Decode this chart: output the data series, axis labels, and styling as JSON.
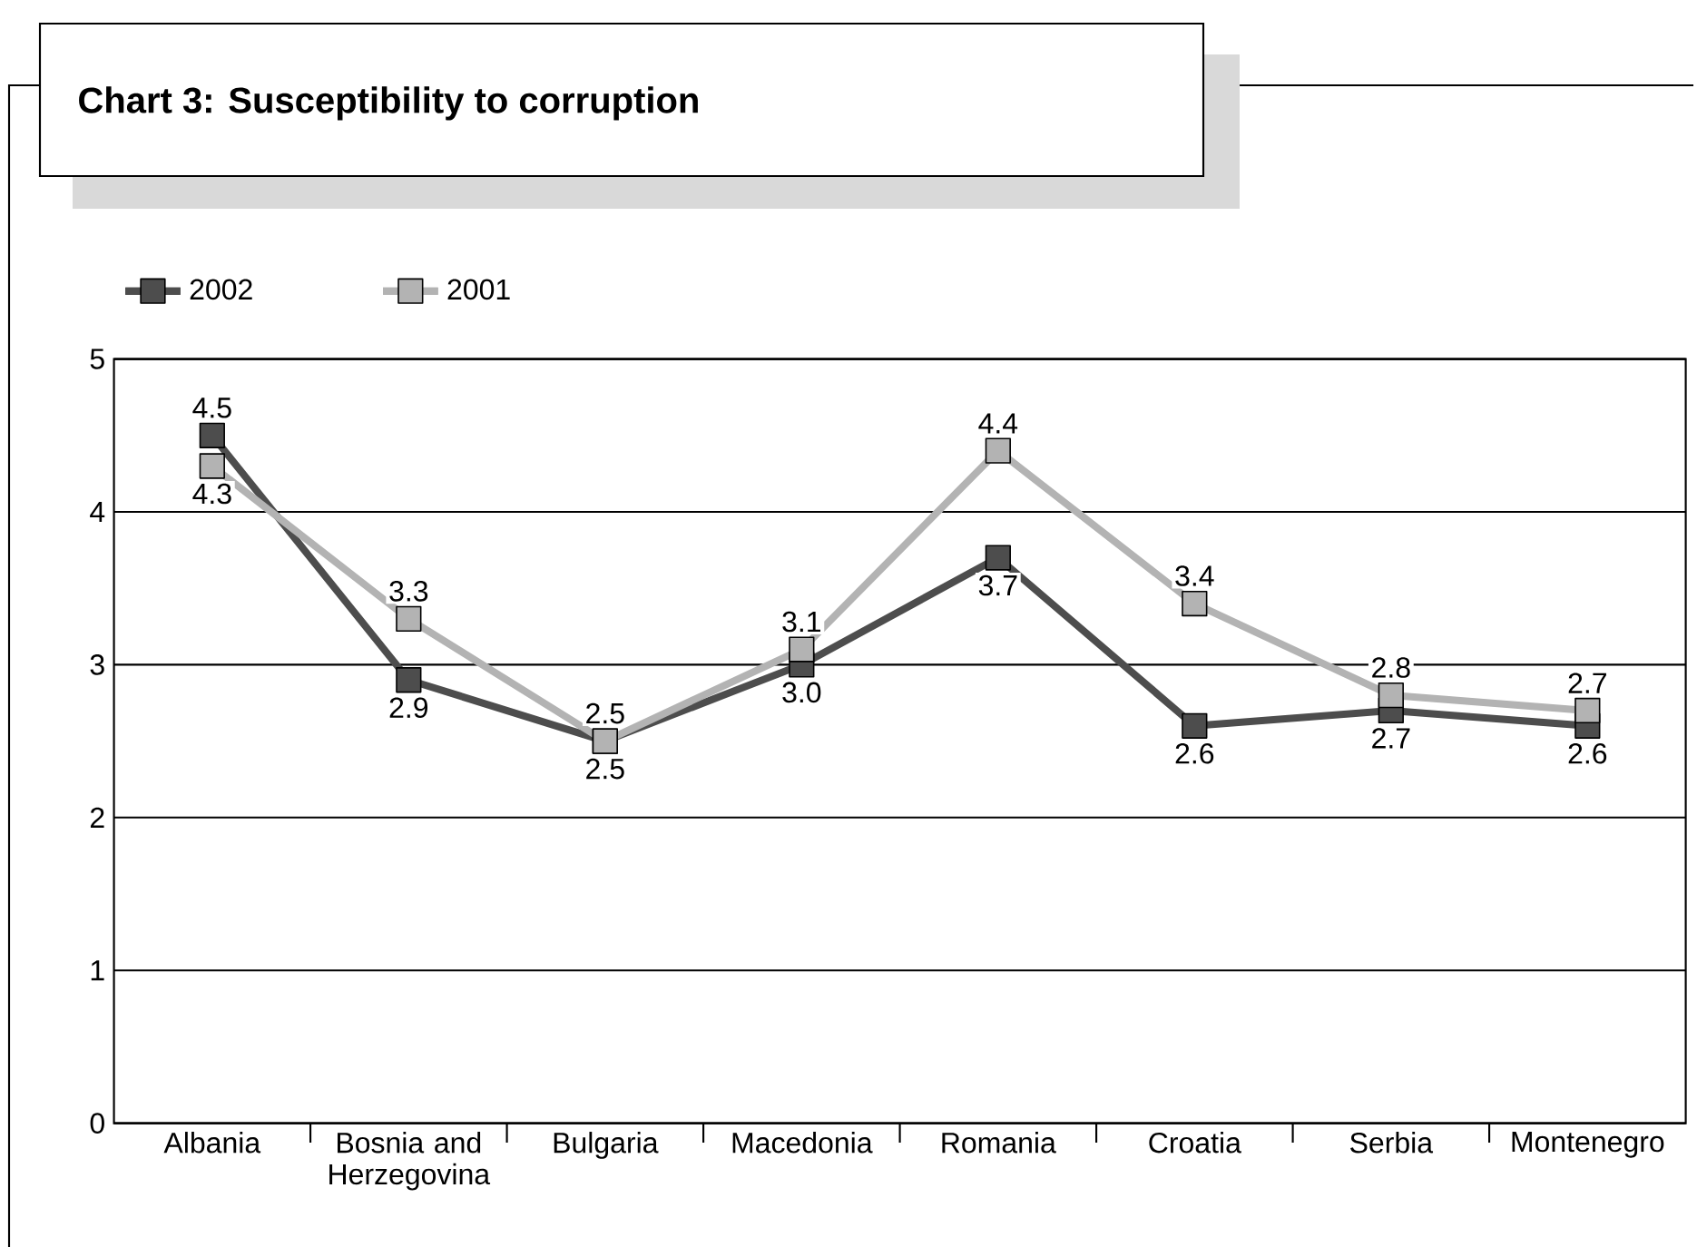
{
  "chart_data": {
    "type": "line",
    "title": "Chart 3: Susceptibility to corruption",
    "categories": [
      "Albania",
      "Bosnia and Herzegovina",
      "Bulgaria",
      "Macedonia",
      "Romania",
      "Croatia",
      "Serbia",
      "Montenegro"
    ],
    "series": [
      {
        "name": "2002",
        "color": "#4d4d4d",
        "values": [
          4.5,
          2.9,
          2.5,
          3.0,
          3.7,
          2.6,
          2.7,
          2.6
        ],
        "value_labels": [
          "4.5",
          "2.9",
          "2.5",
          "3.0",
          "3.7",
          "2.6",
          "2.7",
          "2.6"
        ]
      },
      {
        "name": "2001",
        "color": "#b3b3b3",
        "values": [
          4.3,
          3.3,
          2.5,
          3.1,
          4.4,
          3.4,
          2.8,
          2.7
        ],
        "value_labels": [
          "4.3",
          "3.3",
          "2.5",
          "3.1",
          "4.4",
          "3.4",
          "2.8",
          "2.7"
        ]
      }
    ],
    "ylim": [
      0,
      5
    ],
    "yticks": [
      0,
      1,
      2,
      3,
      4,
      5
    ],
    "grid": "y",
    "legend": "top left",
    "marker": "square"
  }
}
